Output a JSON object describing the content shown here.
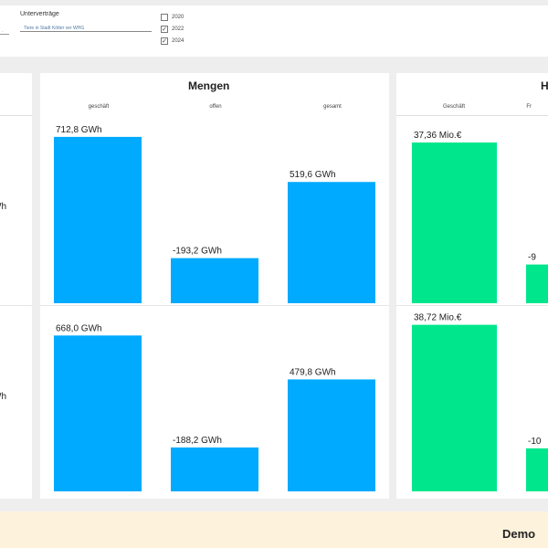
{
  "filters": {
    "left_value": "·",
    "slicer_title": "Unterverträge",
    "slicer_value": "Tiere in Stadt Kötter ver WHG",
    "years": [
      {
        "label": "2020",
        "checked": false
      },
      {
        "label": "2022",
        "checked": true
      },
      {
        "label": "2024",
        "checked": true
      }
    ]
  },
  "left_panel": {
    "labels": [
      "Wh",
      "Wh"
    ]
  },
  "mengen": {
    "title": "Mengen",
    "columns": [
      "geschäft",
      "offen",
      "gesamt"
    ]
  },
  "right_panel": {
    "title": "H",
    "columns": [
      "Geschäft",
      "Fr"
    ]
  },
  "footer": {
    "text": "Demo"
  },
  "colors": {
    "mengen_bar": "#00aaff",
    "euro_bar": "#00e68c"
  },
  "chart_data": [
    {
      "type": "bar",
      "name": "mengen-top",
      "categories": [
        "geschäft",
        "offen",
        "gesamt"
      ],
      "values": [
        712.8,
        -193.2,
        519.6
      ],
      "data_labels": [
        "712,8 GWh",
        "-193,2 GWh",
        "519,6 GWh"
      ],
      "unit": "GWh"
    },
    {
      "type": "bar",
      "name": "mengen-bottom",
      "categories": [
        "geschäft",
        "offen",
        "gesamt"
      ],
      "values": [
        668.0,
        -188.2,
        479.8
      ],
      "data_labels": [
        "668,0 GWh",
        "-188,2 GWh",
        "479,8 GWh"
      ],
      "unit": "GWh"
    },
    {
      "type": "bar",
      "name": "euro-top",
      "categories": [
        "Geschäft",
        "Fr"
      ],
      "values": [
        37.36,
        -9
      ],
      "data_labels": [
        "37,36 Mio.€",
        "-9"
      ],
      "unit": "Mio.€"
    },
    {
      "type": "bar",
      "name": "euro-bottom",
      "categories": [
        "Geschäft",
        "Fr"
      ],
      "values": [
        38.72,
        -10
      ],
      "data_labels": [
        "38,72 Mio.€",
        "-10"
      ],
      "unit": "Mio.€"
    }
  ]
}
